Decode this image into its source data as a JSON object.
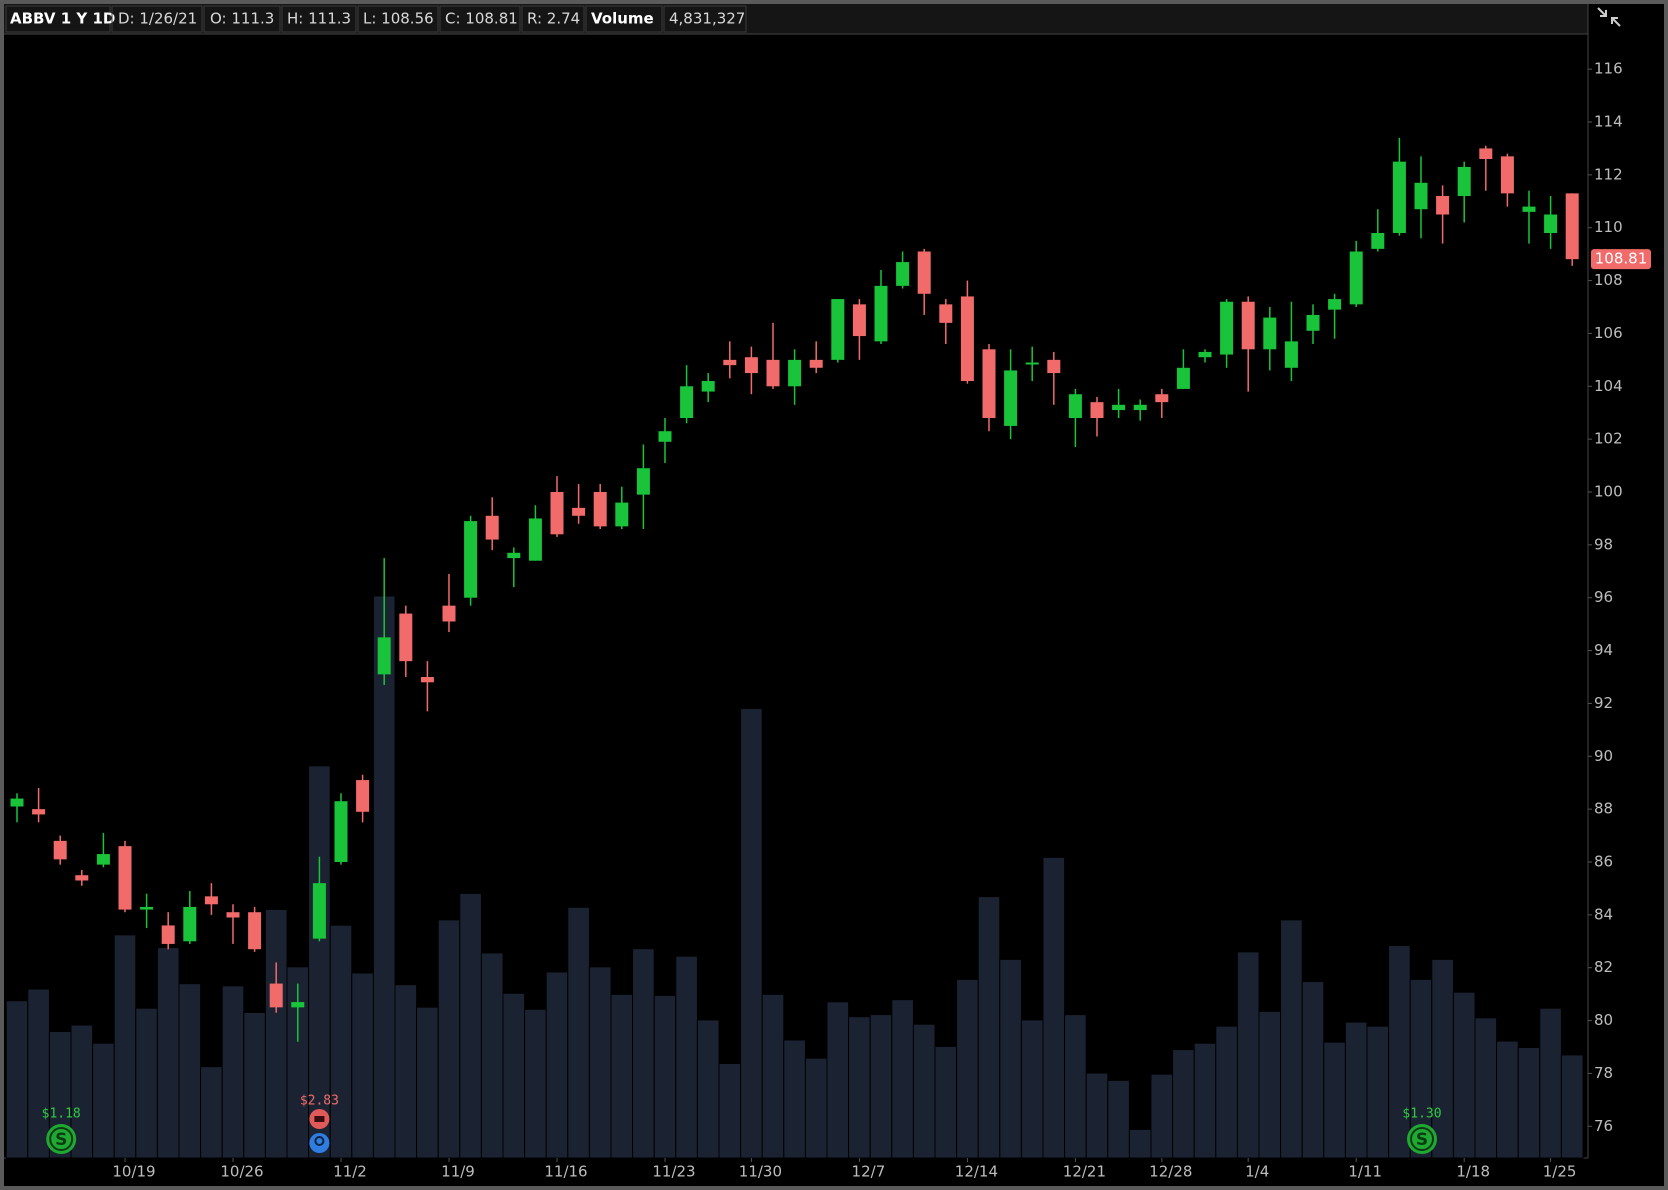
{
  "header": {
    "symbol": "ABBV 1 Y 1D",
    "date": "D: 1/26/21",
    "open": "O: 111.3",
    "high": "H: 111.3",
    "low": "L: 108.56",
    "close": "C: 108.81",
    "range": "R: 2.74",
    "volume_label": "Volume",
    "volume_value": "4,831,327"
  },
  "chart_data": {
    "type": "candlestick",
    "categories": [
      null,
      null,
      null,
      null,
      null,
      "10/19",
      null,
      null,
      null,
      null,
      "10/26",
      null,
      null,
      null,
      null,
      "11/2",
      null,
      null,
      null,
      null,
      "11/9",
      null,
      null,
      null,
      null,
      "11/16",
      null,
      null,
      null,
      null,
      "11/23",
      null,
      null,
      null,
      "11/30",
      null,
      null,
      null,
      null,
      "12/7",
      null,
      null,
      null,
      null,
      "12/14",
      null,
      null,
      null,
      null,
      "12/21",
      null,
      null,
      null,
      "12/28",
      null,
      null,
      null,
      "1/4",
      null,
      null,
      null,
      null,
      "1/11",
      null,
      null,
      null,
      null,
      "1/18",
      null,
      null,
      null,
      "1/25",
      null
    ],
    "open": [
      88.1,
      88.0,
      86.8,
      85.5,
      85.9,
      86.6,
      84.2,
      83.6,
      83.0,
      84.7,
      84.1,
      84.1,
      81.4,
      80.5,
      83.1,
      86.0,
      89.1,
      93.1,
      95.4,
      93.0,
      95.7,
      96.0,
      99.1,
      97.5,
      97.4,
      100.0,
      99.4,
      100.0,
      98.7,
      99.9,
      101.9,
      102.8,
      103.8,
      105.0,
      105.1,
      105.0,
      104.0,
      105.0,
      105.0,
      107.1,
      105.7,
      107.8,
      109.1,
      107.1,
      107.4,
      105.4,
      102.5,
      104.85,
      105.0,
      102.8,
      103.4,
      103.1,
      103.1,
      103.7,
      103.9,
      105.1,
      105.2,
      107.2,
      105.4,
      104.7,
      106.1,
      106.9,
      107.1,
      109.2,
      109.8,
      110.7,
      111.2,
      111.2,
      113.0,
      112.7,
      110.6,
      109.8,
      111.3
    ],
    "high": [
      88.6,
      88.8,
      87.0,
      85.7,
      87.1,
      86.8,
      84.8,
      84.1,
      84.9,
      85.2,
      84.4,
      84.3,
      82.2,
      81.4,
      86.2,
      88.6,
      89.3,
      97.5,
      95.7,
      93.6,
      96.9,
      99.1,
      99.8,
      97.9,
      99.5,
      100.6,
      100.3,
      100.3,
      100.2,
      101.8,
      102.8,
      104.8,
      104.5,
      105.7,
      105.5,
      106.4,
      105.4,
      105.7,
      107.3,
      107.3,
      108.4,
      109.1,
      109.2,
      107.3,
      108.0,
      105.6,
      105.4,
      105.5,
      105.3,
      103.9,
      103.6,
      103.9,
      103.5,
      103.9,
      105.4,
      105.4,
      107.3,
      107.4,
      107.0,
      107.2,
      107.1,
      107.5,
      109.5,
      110.7,
      113.4,
      112.7,
      111.6,
      112.5,
      113.1,
      112.8,
      111.4,
      111.2,
      111.3
    ],
    "low": [
      87.5,
      87.5,
      85.9,
      85.1,
      85.8,
      84.1,
      83.5,
      82.7,
      82.9,
      84.0,
      82.9,
      82.6,
      80.3,
      79.2,
      83.0,
      85.9,
      87.5,
      92.7,
      93.0,
      91.7,
      94.7,
      95.7,
      97.8,
      96.4,
      97.4,
      98.3,
      98.8,
      98.6,
      98.6,
      98.6,
      101.1,
      102.6,
      103.4,
      104.3,
      103.7,
      103.9,
      103.3,
      104.5,
      104.9,
      105.0,
      105.6,
      107.7,
      106.7,
      105.6,
      104.1,
      102.3,
      102.0,
      104.2,
      103.3,
      101.7,
      102.1,
      102.8,
      102.7,
      102.8,
      103.9,
      104.9,
      104.7,
      103.8,
      104.6,
      104.2,
      105.6,
      105.8,
      107.0,
      109.1,
      109.7,
      109.6,
      109.4,
      110.2,
      111.4,
      110.8,
      109.4,
      109.2,
      108.56
    ],
    "close": [
      88.4,
      87.8,
      86.1,
      85.3,
      86.3,
      84.2,
      84.3,
      82.9,
      84.3,
      84.4,
      83.9,
      82.7,
      80.5,
      80.7,
      85.2,
      88.3,
      87.9,
      94.5,
      93.6,
      92.8,
      95.1,
      98.9,
      98.2,
      97.7,
      99.0,
      98.4,
      99.1,
      98.7,
      99.6,
      100.9,
      102.3,
      104.0,
      104.2,
      104.8,
      104.5,
      104.0,
      105.0,
      104.7,
      107.3,
      105.9,
      107.8,
      108.7,
      107.5,
      106.4,
      104.2,
      102.8,
      104.6,
      104.9,
      104.5,
      103.7,
      102.8,
      103.3,
      103.3,
      103.4,
      104.7,
      105.3,
      107.2,
      105.4,
      106.6,
      105.7,
      106.7,
      107.3,
      109.1,
      109.8,
      112.5,
      111.7,
      110.5,
      112.3,
      112.6,
      111.3,
      110.8,
      110.5,
      108.81
    ],
    "volume": [
      7370000,
      7920000,
      5930000,
      6230000,
      5380000,
      10460000,
      7020000,
      9860000,
      8170000,
      4280000,
      8070000,
      6820000,
      11650000,
      8960000,
      18380000,
      10910000,
      8670000,
      26340000,
      8120000,
      7070000,
      11160000,
      12400000,
      9610000,
      7720000,
      6970000,
      8720000,
      11750000,
      8960000,
      7670000,
      9810000,
      7620000,
      9460000,
      6470000,
      4430000,
      21070000,
      7670000,
      5530000,
      4680000,
      7320000,
      6620000,
      6720000,
      7420000,
      6270000,
      5230000,
      8370000,
      12250000,
      9310000,
      6470000,
      14090000,
      6720000,
      3980000,
      3640000,
      1340000,
      3930000,
      5080000,
      5380000,
      6180000,
      9660000,
      6870000,
      11160000,
      8270000,
      5430000,
      6370000,
      6180000,
      9960000,
      8370000,
      9310000,
      7770000,
      6570000,
      5480000,
      5180000,
      7020000,
      4831327
    ],
    "up_color": "#19c43a",
    "down_color": "#f26b6b",
    "volume_color": "#1b2333",
    "ylim": [
      74.8,
      117.33
    ],
    "yticks": [
      76,
      78,
      80,
      82,
      84,
      86,
      88,
      90,
      92,
      94,
      96,
      98,
      100,
      102,
      104,
      106,
      108,
      110,
      112,
      114,
      116
    ],
    "last_price_label": "108.81",
    "events": [
      {
        "at": 2,
        "label": "$1.18",
        "kind": "dividend"
      },
      {
        "at": 14,
        "label": "$2.83",
        "kind": "earnings"
      },
      {
        "at": 65,
        "label": "$1.30",
        "kind": "dividend"
      }
    ]
  }
}
